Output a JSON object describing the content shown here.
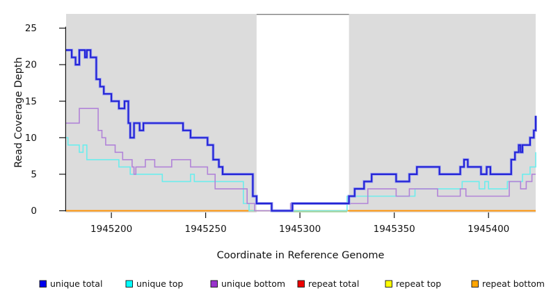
{
  "figure": {
    "xlabel": "Coordinate in Reference Genome",
    "ylabel": "Read Coverage Depth"
  },
  "chart_data": {
    "type": "line",
    "subtype": "step-after",
    "title": "",
    "xlabel": "Coordinate in Reference Genome",
    "ylabel": "Read Coverage Depth",
    "xlim": [
      1945176,
      1945425
    ],
    "ylim": [
      0,
      27
    ],
    "xticks": [
      1945200,
      1945250,
      1945300,
      1945350,
      1945400
    ],
    "yticks": [
      0,
      5,
      10,
      15,
      20,
      25
    ],
    "grid": false,
    "legend_position": "bottom",
    "plot_bg_color": "#dcdcdc",
    "band_border_color": "#7f7f7f",
    "highlight_band": {
      "x0": 1945277,
      "x1": 1945326,
      "color": "#ffffff"
    },
    "zero_overlap_segment": {
      "x0": 1945285,
      "x1": 1945325,
      "color": "#8fcf8f",
      "value": 0
    },
    "series": [
      {
        "name": "unique total",
        "line_color": "#2424d6",
        "halo_color": "#9fa4ef",
        "legend_color": "#0000ee",
        "line_width": 2.2,
        "points": [
          [
            1945176,
            22
          ],
          [
            1945179,
            21
          ],
          [
            1945181,
            20
          ],
          [
            1945183,
            22
          ],
          [
            1945186,
            21
          ],
          [
            1945187,
            22
          ],
          [
            1945189,
            21
          ],
          [
            1945192,
            18
          ],
          [
            1945194,
            17
          ],
          [
            1945196,
            16
          ],
          [
            1945200,
            15
          ],
          [
            1945204,
            14
          ],
          [
            1945207,
            15
          ],
          [
            1945209,
            12
          ],
          [
            1945210,
            10
          ],
          [
            1945212,
            12
          ],
          [
            1945215,
            11
          ],
          [
            1945217,
            12
          ],
          [
            1945238,
            11
          ],
          [
            1945242,
            10
          ],
          [
            1945251,
            9
          ],
          [
            1945254,
            7
          ],
          [
            1945257,
            6
          ],
          [
            1945259,
            5
          ],
          [
            1945275,
            2
          ],
          [
            1945277,
            1
          ],
          [
            1945285,
            0
          ],
          [
            1945296,
            1
          ],
          [
            1945326,
            2
          ],
          [
            1945329,
            3
          ],
          [
            1945334,
            4
          ],
          [
            1945338,
            5
          ],
          [
            1945351,
            4
          ],
          [
            1945358,
            5
          ],
          [
            1945362,
            6
          ],
          [
            1945374,
            5
          ],
          [
            1945385,
            6
          ],
          [
            1945387,
            7
          ],
          [
            1945389,
            6
          ],
          [
            1945396,
            5
          ],
          [
            1945399,
            6
          ],
          [
            1945401,
            5
          ],
          [
            1945412,
            7
          ],
          [
            1945414,
            8
          ],
          [
            1945416,
            9
          ],
          [
            1945417,
            8
          ],
          [
            1945418,
            9
          ],
          [
            1945422,
            10
          ],
          [
            1945424,
            11
          ],
          [
            1945425,
            13
          ]
        ]
      },
      {
        "name": "unique top",
        "line_color": "#6ceded",
        "legend_color": "#00ffff",
        "line_width": 1.6,
        "points": [
          [
            1945176,
            10
          ],
          [
            1945177,
            9
          ],
          [
            1945183,
            8
          ],
          [
            1945185,
            9
          ],
          [
            1945187,
            7
          ],
          [
            1945204,
            6
          ],
          [
            1945210,
            5
          ],
          [
            1945227,
            4
          ],
          [
            1945242,
            5
          ],
          [
            1945244,
            4
          ],
          [
            1945270,
            1
          ],
          [
            1945273,
            0
          ],
          [
            1945325,
            2
          ],
          [
            1945361,
            3
          ],
          [
            1945386,
            4
          ],
          [
            1945395,
            3
          ],
          [
            1945398,
            4
          ],
          [
            1945400,
            3
          ],
          [
            1945410,
            4
          ],
          [
            1945418,
            5
          ],
          [
            1945422,
            6
          ],
          [
            1945425,
            8
          ]
        ]
      },
      {
        "name": "unique bottom",
        "line_color": "#b183d8",
        "legend_color": "#9933cc",
        "line_width": 1.6,
        "points": [
          [
            1945176,
            12
          ],
          [
            1945183,
            14
          ],
          [
            1945193,
            11
          ],
          [
            1945195,
            10
          ],
          [
            1945197,
            9
          ],
          [
            1945202,
            8
          ],
          [
            1945206,
            7
          ],
          [
            1945211,
            6
          ],
          [
            1945212,
            5
          ],
          [
            1945213,
            6
          ],
          [
            1945218,
            7
          ],
          [
            1945223,
            6
          ],
          [
            1945232,
            7
          ],
          [
            1945242,
            6
          ],
          [
            1945251,
            5
          ],
          [
            1945255,
            3
          ],
          [
            1945272,
            1
          ],
          [
            1945276,
            0
          ],
          [
            1945295,
            1
          ],
          [
            1945336,
            3
          ],
          [
            1945351,
            2
          ],
          [
            1945358,
            3
          ],
          [
            1945373,
            2
          ],
          [
            1945385,
            3
          ],
          [
            1945388,
            2
          ],
          [
            1945411,
            4
          ],
          [
            1945417,
            3
          ],
          [
            1945420,
            4
          ],
          [
            1945423,
            5
          ]
        ]
      },
      {
        "name": "repeat total",
        "line_color": "#dd0000",
        "legend_color": "#ee0000",
        "line_width": 1.6,
        "points": [
          [
            1945176,
            0
          ],
          [
            1945425,
            0
          ]
        ]
      },
      {
        "name": "repeat top",
        "line_color": "#ffff33",
        "legend_color": "#ffff00",
        "line_width": 1.6,
        "points": [
          [
            1945176,
            0
          ],
          [
            1945425,
            0
          ]
        ]
      },
      {
        "name": "repeat bottom",
        "line_color": "#ff9408",
        "legend_color": "#ffa500",
        "line_width": 2,
        "points": [
          [
            1945176,
            0
          ],
          [
            1945425,
            0
          ]
        ]
      }
    ]
  }
}
